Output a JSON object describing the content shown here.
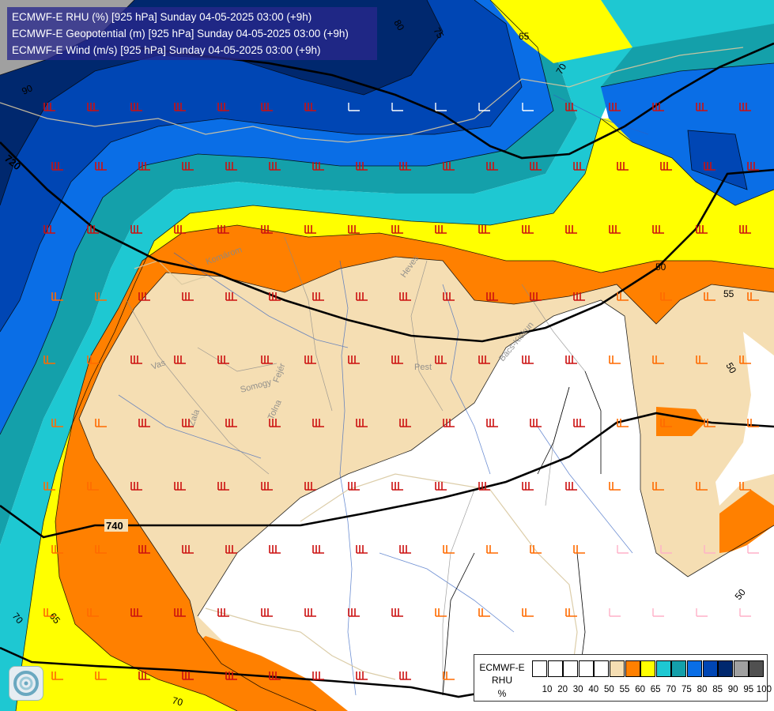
{
  "header": {
    "line1": "ECMWF-E RHU (%) [925 hPa] Sunday 04-05-2025 03:00 (+9h)",
    "line2": "ECMWF-E Geopotential (m) [925 hPa] Sunday 04-05-2025 03:00 (+9h)",
    "line3": "ECMWF-E Wind (m/s) [925 hPa] Sunday 04-05-2025 03:00 (+9h)"
  },
  "legend": {
    "model": "ECMWF-E",
    "variable": "RHU",
    "unit": "%",
    "bins": [
      {
        "label": "10",
        "color": "#ffffff"
      },
      {
        "label": "20",
        "color": "#ffffff"
      },
      {
        "label": "30",
        "color": "#ffffff"
      },
      {
        "label": "40",
        "color": "#ffffff"
      },
      {
        "label": "50",
        "color": "#ffffff"
      },
      {
        "label": "55",
        "color": "#f5deb3"
      },
      {
        "label": "60",
        "color": "#ff8000"
      },
      {
        "label": "65",
        "color": "#ffff00"
      },
      {
        "label": "70",
        "color": "#1ec8d2"
      },
      {
        "label": "75",
        "color": "#14a0aa"
      },
      {
        "label": "80",
        "color": "#0a6ee6"
      },
      {
        "label": "85",
        "color": "#0046b4"
      },
      {
        "label": "90",
        "color": "#00286e"
      },
      {
        "label": "95",
        "color": "#a0a0a0"
      },
      {
        "label": "100",
        "color": "#505050"
      }
    ]
  },
  "map_labels": {
    "regions": [
      "Vas",
      "Zala",
      "Somogy",
      "Tolna",
      "Fejér",
      "Pest",
      "Heves",
      "Bács-Kiskun",
      "Komárom"
    ],
    "rhu_contours": [
      "90",
      "80",
      "75",
      "70",
      "65",
      "70",
      "65",
      "50",
      "55",
      "50",
      "50"
    ],
    "geopotential_contours": [
      "720",
      "740",
      "760"
    ]
  },
  "colors": {
    "rhu_50_55": "#f5deb3",
    "rhu_55_60": "#ff8000",
    "rhu_60_65": "#ffff00",
    "rhu_65_70": "#1ec8d2",
    "rhu_70_75": "#14a0aa",
    "rhu_75_80": "#0a6ee6",
    "rhu_80_85": "#0046b4",
    "rhu_85_90": "#00286e",
    "rhu_90_95": "#a0a0a0",
    "wind_strong": "#cc1010",
    "wind_medium": "#ff6a00",
    "wind_weak": "#ffb0c8",
    "wind_calm": "#ffffff"
  }
}
